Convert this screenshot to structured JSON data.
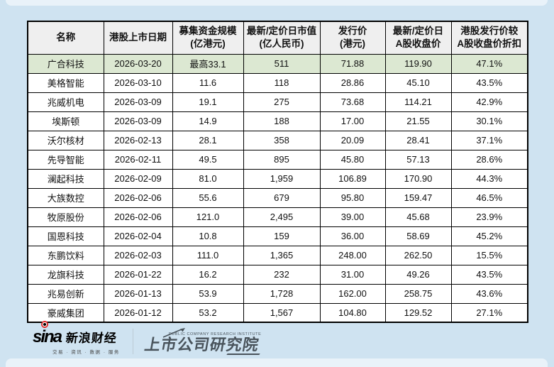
{
  "page": {
    "background": "#cfe3f1",
    "highlight_color": "#dce8d2",
    "header_bg": "#efefef"
  },
  "chart_data": {
    "type": "table",
    "title": "",
    "columns": [
      {
        "line1": "名称",
        "line2": ""
      },
      {
        "line1": "港股上市日期",
        "line2": ""
      },
      {
        "line1": "募集资金规模",
        "line2": "(亿港元)"
      },
      {
        "line1": "最新/定价日市值",
        "line2": "(亿人民币)"
      },
      {
        "line1": "发行价",
        "line2": "(港元)"
      },
      {
        "line1": "最新/定价日",
        "line2": "A股收盘价"
      },
      {
        "line1": "港股发行价较",
        "line2": "A股收盘价折扣"
      }
    ],
    "rows": [
      {
        "name": "广合科技",
        "date": "2026-03-20",
        "raise": "最高33.1",
        "mcap": "511",
        "price": "71.88",
        "a_close": "119.90",
        "discount": "47.1%",
        "highlight": true
      },
      {
        "name": "美格智能",
        "date": "2026-03-10",
        "raise": "11.6",
        "mcap": "118",
        "price": "28.86",
        "a_close": "45.10",
        "discount": "43.5%",
        "highlight": false
      },
      {
        "name": "兆威机电",
        "date": "2026-03-09",
        "raise": "19.1",
        "mcap": "275",
        "price": "73.68",
        "a_close": "114.21",
        "discount": "42.9%",
        "highlight": false
      },
      {
        "name": "埃斯顿",
        "date": "2026-03-09",
        "raise": "14.9",
        "mcap": "188",
        "price": "17.00",
        "a_close": "21.55",
        "discount": "30.1%",
        "highlight": false
      },
      {
        "name": "沃尔核材",
        "date": "2026-02-13",
        "raise": "28.1",
        "mcap": "358",
        "price": "20.09",
        "a_close": "28.41",
        "discount": "37.1%",
        "highlight": false
      },
      {
        "name": "先导智能",
        "date": "2026-02-11",
        "raise": "49.5",
        "mcap": "895",
        "price": "45.80",
        "a_close": "57.13",
        "discount": "28.6%",
        "highlight": false
      },
      {
        "name": "澜起科技",
        "date": "2026-02-09",
        "raise": "81.0",
        "mcap": "1,959",
        "price": "106.89",
        "a_close": "170.90",
        "discount": "44.3%",
        "highlight": false
      },
      {
        "name": "大族数控",
        "date": "2026-02-06",
        "raise": "55.6",
        "mcap": "679",
        "price": "95.80",
        "a_close": "159.47",
        "discount": "46.5%",
        "highlight": false
      },
      {
        "name": "牧原股份",
        "date": "2026-02-06",
        "raise": "121.0",
        "mcap": "2,495",
        "price": "39.00",
        "a_close": "45.68",
        "discount": "23.9%",
        "highlight": false
      },
      {
        "name": "国恩科技",
        "date": "2026-02-04",
        "raise": "10.8",
        "mcap": "159",
        "price": "36.00",
        "a_close": "58.69",
        "discount": "45.2%",
        "highlight": false
      },
      {
        "name": "东鹏饮料",
        "date": "2026-02-03",
        "raise": "111.0",
        "mcap": "1,365",
        "price": "248.00",
        "a_close": "262.50",
        "discount": "15.5%",
        "highlight": false
      },
      {
        "name": "龙旗科技",
        "date": "2026-01-22",
        "raise": "16.2",
        "mcap": "232",
        "price": "31.00",
        "a_close": "49.26",
        "discount": "43.5%",
        "highlight": false
      },
      {
        "name": "兆易创新",
        "date": "2026-01-13",
        "raise": "53.9",
        "mcap": "1,728",
        "price": "162.00",
        "a_close": "258.75",
        "discount": "43.6%",
        "highlight": false
      },
      {
        "name": "豪威集团",
        "date": "2026-01-12",
        "raise": "53.2",
        "mcap": "1,567",
        "price": "104.80",
        "a_close": "129.52",
        "discount": "27.1%",
        "highlight": false
      }
    ]
  },
  "footer": {
    "sina_logo_text": "sina",
    "sina_brand": "新浪财经",
    "sina_tagline": "交易 · 资讯 · 数据 · 服务",
    "institute_name": "上市公司研究院",
    "institute_subtitle": "PUBLIC COMPANY RESEARCH INSTITUTE"
  }
}
